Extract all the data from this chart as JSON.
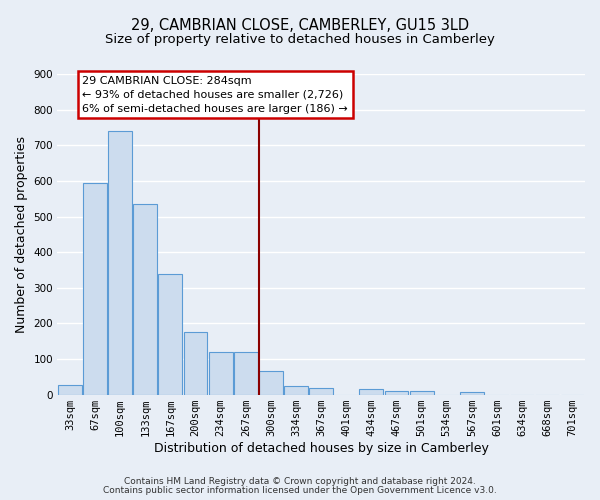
{
  "title": "29, CAMBRIAN CLOSE, CAMBERLEY, GU15 3LD",
  "subtitle": "Size of property relative to detached houses in Camberley",
  "xlabel": "Distribution of detached houses by size in Camberley",
  "ylabel": "Number of detached properties",
  "bar_labels": [
    "33sqm",
    "67sqm",
    "100sqm",
    "133sqm",
    "167sqm",
    "200sqm",
    "234sqm",
    "267sqm",
    "300sqm",
    "334sqm",
    "367sqm",
    "401sqm",
    "434sqm",
    "467sqm",
    "501sqm",
    "534sqm",
    "567sqm",
    "601sqm",
    "634sqm",
    "668sqm",
    "701sqm"
  ],
  "bar_values": [
    27,
    594,
    740,
    536,
    338,
    175,
    120,
    120,
    67,
    25,
    20,
    0,
    15,
    10,
    10,
    0,
    8,
    0,
    0,
    0,
    0
  ],
  "bar_color": "#ccdcee",
  "bar_edge_color": "#5b9bd5",
  "vline_color": "#8b0000",
  "annotation_title": "29 CAMBRIAN CLOSE: 284sqm",
  "annotation_line1": "← 93% of detached houses are smaller (2,726)",
  "annotation_line2": "6% of semi-detached houses are larger (186) →",
  "annotation_box_facecolor": "#ffffff",
  "annotation_border_color": "#cc0000",
  "ylim": [
    0,
    900
  ],
  "yticks": [
    0,
    100,
    200,
    300,
    400,
    500,
    600,
    700,
    800,
    900
  ],
  "bg_color": "#e8eef6",
  "grid_color": "#ffffff",
  "footer1": "Contains HM Land Registry data © Crown copyright and database right 2024.",
  "footer2": "Contains public sector information licensed under the Open Government Licence v3.0.",
  "title_fontsize": 10.5,
  "subtitle_fontsize": 9.5,
  "axis_label_fontsize": 9,
  "tick_fontsize": 7.5,
  "annotation_fontsize": 8,
  "footer_fontsize": 6.5
}
